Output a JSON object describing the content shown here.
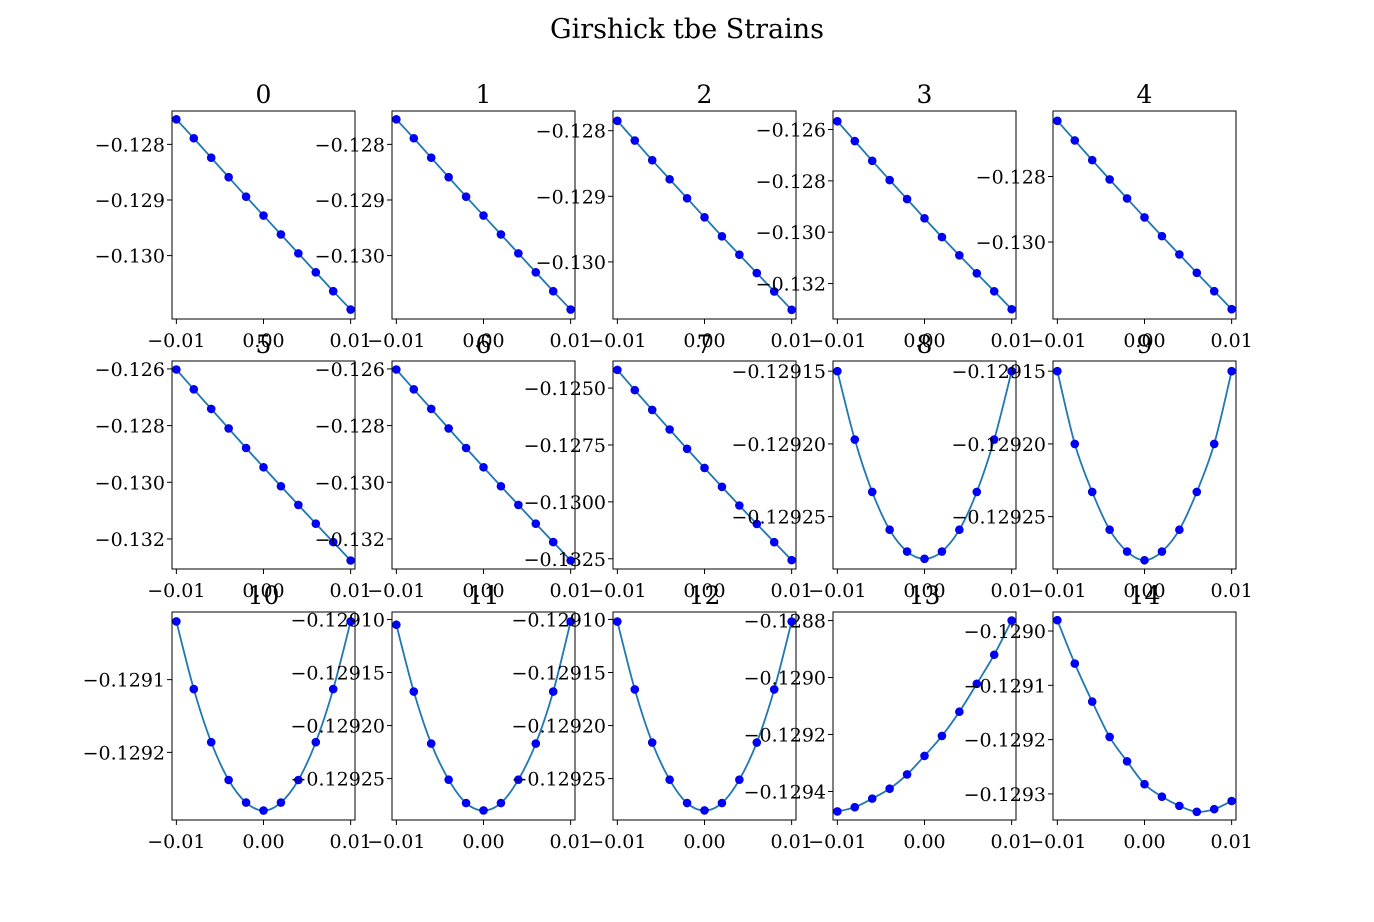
{
  "figure": {
    "title": "Girshick tbe Strains"
  },
  "chart_data": [
    {
      "type": "line",
      "title": "0",
      "x": [
        -0.01,
        -0.008,
        -0.006,
        -0.004,
        -0.002,
        0.0,
        0.002,
        0.004,
        0.006,
        0.008,
        0.01
      ],
      "y": [
        -0.12755,
        -0.12789,
        -0.12824,
        -0.12859,
        -0.12894,
        -0.12928,
        -0.12962,
        -0.12996,
        -0.1303,
        -0.13064,
        -0.13097
      ],
      "xlim": [
        -0.0105,
        0.0105
      ],
      "ylim": [
        -0.13114,
        -0.1274
      ],
      "xticks": [
        -0.01,
        0.0,
        0.01
      ],
      "xtick_labels": [
        "−0.01",
        "0.00",
        "0.01"
      ],
      "yticks": [
        -0.128,
        -0.129,
        -0.13
      ],
      "ytick_labels": [
        "−0.128",
        "−0.129",
        "−0.130"
      ],
      "markers": "blue circles",
      "line_color": "#1f77b4"
    },
    {
      "type": "line",
      "title": "1",
      "x": [
        -0.01,
        -0.008,
        -0.006,
        -0.004,
        -0.002,
        0.0,
        0.002,
        0.004,
        0.006,
        0.008,
        0.01
      ],
      "y": [
        -0.12755,
        -0.12789,
        -0.12824,
        -0.12859,
        -0.12894,
        -0.12928,
        -0.12962,
        -0.12996,
        -0.1303,
        -0.13064,
        -0.13097
      ],
      "xlim": [
        -0.0105,
        0.0105
      ],
      "ylim": [
        -0.13114,
        -0.1274
      ],
      "xticks": [
        -0.01,
        0.0,
        0.01
      ],
      "xtick_labels": [
        "−0.01",
        "0.00",
        "0.01"
      ],
      "yticks": [
        -0.128,
        -0.129,
        -0.13
      ],
      "ytick_labels": [
        "−0.128",
        "−0.129",
        "−0.130"
      ],
      "markers": "blue circles",
      "line_color": "#1f77b4"
    },
    {
      "type": "line",
      "title": "2",
      "x": [
        -0.01,
        -0.008,
        -0.006,
        -0.004,
        -0.002,
        0.0,
        0.002,
        0.004,
        0.006,
        0.008,
        0.01
      ],
      "y": [
        -0.12785,
        -0.12815,
        -0.12845,
        -0.12874,
        -0.12903,
        -0.12932,
        -0.12961,
        -0.12989,
        -0.13017,
        -0.13045,
        -0.13073
      ],
      "xlim": [
        -0.0105,
        0.0105
      ],
      "ylim": [
        -0.13087,
        -0.1277
      ],
      "xticks": [
        -0.01,
        0.0,
        0.01
      ],
      "xtick_labels": [
        "−0.01",
        "0.00",
        "0.01"
      ],
      "yticks": [
        -0.128,
        -0.129,
        -0.13
      ],
      "ytick_labels": [
        "−0.128",
        "−0.129",
        "−0.130"
      ],
      "markers": "blue circles",
      "line_color": "#1f77b4"
    },
    {
      "type": "line",
      "title": "3",
      "x": [
        -0.01,
        -0.008,
        -0.006,
        -0.004,
        -0.002,
        0.0,
        0.002,
        0.004,
        0.006,
        0.008,
        0.01
      ],
      "y": [
        -0.12568,
        -0.12645,
        -0.12722,
        -0.12797,
        -0.12871,
        -0.12946,
        -0.13019,
        -0.1309,
        -0.1316,
        -0.1323,
        -0.133
      ],
      "xlim": [
        -0.0105,
        0.0105
      ],
      "ylim": [
        -0.13338,
        -0.12528
      ],
      "xticks": [
        -0.01,
        0.0,
        0.01
      ],
      "xtick_labels": [
        "−0.01",
        "0.00",
        "0.01"
      ],
      "yticks": [
        -0.126,
        -0.128,
        -0.13,
        -0.132
      ],
      "ytick_labels": [
        "−0.126",
        "−0.128",
        "−0.130",
        "−0.132"
      ],
      "markers": "blue circles",
      "line_color": "#1f77b4"
    },
    {
      "type": "line",
      "title": "4",
      "x": [
        -0.01,
        -0.008,
        -0.006,
        -0.004,
        -0.002,
        0.0,
        0.002,
        0.004,
        0.006,
        0.008,
        0.01
      ],
      "y": [
        -0.1263,
        -0.1269,
        -0.1275,
        -0.12809,
        -0.12867,
        -0.12925,
        -0.12982,
        -0.13038,
        -0.13094,
        -0.1315,
        -0.13205
      ],
      "xlim": [
        -0.0105,
        0.0105
      ],
      "ylim": [
        -0.13235,
        -0.126
      ],
      "xticks": [
        -0.01,
        0.0,
        0.01
      ],
      "xtick_labels": [
        "−0.01",
        "0.00",
        "0.01"
      ],
      "yticks": [
        -0.128,
        -0.13
      ],
      "ytick_labels": [
        "−0.128",
        "−0.130"
      ],
      "markers": "blue circles",
      "line_color": "#1f77b4"
    },
    {
      "type": "line",
      "title": "5",
      "x": [
        -0.01,
        -0.008,
        -0.006,
        -0.004,
        -0.002,
        0.0,
        0.002,
        0.004,
        0.006,
        0.008,
        0.01
      ],
      "y": [
        -0.12602,
        -0.12672,
        -0.12741,
        -0.1281,
        -0.12879,
        -0.12947,
        -0.13014,
        -0.1308,
        -0.13146,
        -0.13211,
        -0.13276
      ],
      "xlim": [
        -0.0105,
        0.0105
      ],
      "ylim": [
        -0.13306,
        -0.12572
      ],
      "xticks": [
        -0.01,
        0.0,
        0.01
      ],
      "xtick_labels": [
        "−0.01",
        "0.00",
        "0.01"
      ],
      "yticks": [
        -0.126,
        -0.128,
        -0.13,
        -0.132
      ],
      "ytick_labels": [
        "−0.126",
        "−0.128",
        "−0.130",
        "−0.132"
      ],
      "markers": "blue circles",
      "line_color": "#1f77b4"
    },
    {
      "type": "line",
      "title": "6",
      "x": [
        -0.01,
        -0.008,
        -0.006,
        -0.004,
        -0.002,
        0.0,
        0.002,
        0.004,
        0.006,
        0.008,
        0.01
      ],
      "y": [
        -0.12602,
        -0.12672,
        -0.12741,
        -0.1281,
        -0.12879,
        -0.12947,
        -0.13014,
        -0.1308,
        -0.13146,
        -0.13211,
        -0.13276
      ],
      "xlim": [
        -0.0105,
        0.0105
      ],
      "ylim": [
        -0.13306,
        -0.12572
      ],
      "xticks": [
        -0.01,
        0.0,
        0.01
      ],
      "xtick_labels": [
        "−0.01",
        "0.00",
        "0.01"
      ],
      "yticks": [
        -0.126,
        -0.128,
        -0.13,
        -0.132
      ],
      "ytick_labels": [
        "−0.126",
        "−0.128",
        "−0.130",
        "−0.132"
      ],
      "markers": "blue circles",
      "line_color": "#1f77b4"
    },
    {
      "type": "line",
      "title": "7",
      "x": [
        -0.01,
        -0.008,
        -0.006,
        -0.004,
        -0.002,
        0.0,
        0.002,
        0.004,
        0.006,
        0.008,
        0.01
      ],
      "y": [
        -0.1242,
        -0.12509,
        -0.12596,
        -0.12682,
        -0.12767,
        -0.12851,
        -0.12934,
        -0.13016,
        -0.13097,
        -0.13177,
        -0.13256
      ],
      "xlim": [
        -0.0105,
        0.0105
      ],
      "ylim": [
        -0.13295,
        -0.12381
      ],
      "xticks": [
        -0.01,
        0.0,
        0.01
      ],
      "xtick_labels": [
        "−0.01",
        "0.00",
        "0.01"
      ],
      "yticks": [
        -0.125,
        -0.1275,
        -0.13,
        -0.1325
      ],
      "ytick_labels": [
        "−0.1250",
        "−0.1275",
        "−0.1300",
        "−0.1325"
      ],
      "markers": "blue circles",
      "line_color": "#1f77b4"
    },
    {
      "type": "line",
      "title": "8",
      "x": [
        -0.01,
        -0.008,
        -0.006,
        -0.004,
        -0.002,
        0.0,
        0.002,
        0.004,
        0.006,
        0.008,
        0.01
      ],
      "y": [
        -0.12915,
        -0.129197,
        -0.129233,
        -0.129259,
        -0.129274,
        -0.129279,
        -0.129274,
        -0.129259,
        -0.129233,
        -0.129197,
        -0.12915
      ],
      "xlim": [
        -0.0105,
        0.0105
      ],
      "ylim": [
        -0.129286,
        -0.129143
      ],
      "xticks": [
        -0.01,
        0.0,
        0.01
      ],
      "xtick_labels": [
        "−0.01",
        "0.00",
        "0.01"
      ],
      "yticks": [
        -0.12915,
        -0.1292,
        -0.12925
      ],
      "ytick_labels": [
        "−0.12915",
        "−0.12920",
        "−0.12925"
      ],
      "markers": "blue circles",
      "line_color": "#1f77b4"
    },
    {
      "type": "line",
      "title": "9",
      "x": [
        -0.01,
        -0.008,
        -0.006,
        -0.004,
        -0.002,
        0.0,
        0.002,
        0.004,
        0.006,
        0.008,
        0.01
      ],
      "y": [
        -0.12915,
        -0.1292,
        -0.129233,
        -0.129259,
        -0.129274,
        -0.12928,
        -0.129274,
        -0.129259,
        -0.129233,
        -0.1292,
        -0.12915
      ],
      "xlim": [
        -0.0105,
        0.0105
      ],
      "ylim": [
        -0.129286,
        -0.129143
      ],
      "xticks": [
        -0.01,
        0.0,
        0.01
      ],
      "xtick_labels": [
        "−0.01",
        "0.00",
        "0.01"
      ],
      "yticks": [
        -0.12915,
        -0.1292,
        -0.12925
      ],
      "ytick_labels": [
        "−0.12915",
        "−0.12920",
        "−0.12925"
      ],
      "markers": "blue circles",
      "line_color": "#1f77b4"
    },
    {
      "type": "line",
      "title": "10",
      "x": [
        -0.01,
        -0.008,
        -0.006,
        -0.004,
        -0.002,
        0.0,
        0.002,
        0.004,
        0.006,
        0.008,
        0.01
      ],
      "y": [
        -0.12902,
        -0.129113,
        -0.129186,
        -0.129238,
        -0.129269,
        -0.12928,
        -0.129269,
        -0.129238,
        -0.129186,
        -0.129113,
        -0.12902
      ],
      "xlim": [
        -0.0105,
        0.0105
      ],
      "ylim": [
        -0.129293,
        -0.129007
      ],
      "xticks": [
        -0.01,
        0.0,
        0.01
      ],
      "xtick_labels": [
        "−0.01",
        "0.00",
        "0.01"
      ],
      "yticks": [
        -0.1291,
        -0.1292
      ],
      "ytick_labels": [
        "−0.1291",
        "−0.1292"
      ],
      "markers": "blue circles",
      "line_color": "#1f77b4"
    },
    {
      "type": "line",
      "title": "11",
      "x": [
        -0.01,
        -0.008,
        -0.006,
        -0.004,
        -0.002,
        0.0,
        0.002,
        0.004,
        0.006,
        0.008,
        0.01
      ],
      "y": [
        -0.129105,
        -0.129168,
        -0.129217,
        -0.129251,
        -0.129273,
        -0.12928,
        -0.129273,
        -0.129251,
        -0.129217,
        -0.129168,
        -0.129102
      ],
      "xlim": [
        -0.0105,
        0.0105
      ],
      "ylim": [
        -0.129289,
        -0.129093
      ],
      "xticks": [
        -0.01,
        0.0,
        0.01
      ],
      "xtick_labels": [
        "−0.01",
        "0.00",
        "0.01"
      ],
      "yticks": [
        -0.1291,
        -0.12915,
        -0.1292,
        -0.12925
      ],
      "ytick_labels": [
        "−0.12910",
        "−0.12915",
        "−0.12920",
        "−0.12925"
      ],
      "markers": "blue circles",
      "line_color": "#1f77b4"
    },
    {
      "type": "line",
      "title": "12",
      "x": [
        -0.01,
        -0.008,
        -0.006,
        -0.004,
        -0.002,
        0.0,
        0.002,
        0.004,
        0.006,
        0.008,
        0.01
      ],
      "y": [
        -0.129102,
        -0.129166,
        -0.129216,
        -0.129251,
        -0.129273,
        -0.12928,
        -0.129273,
        -0.129251,
        -0.129216,
        -0.129166,
        -0.129102
      ],
      "xlim": [
        -0.0105,
        0.0105
      ],
      "ylim": [
        -0.129289,
        -0.129093
      ],
      "xticks": [
        -0.01,
        0.0,
        0.01
      ],
      "xtick_labels": [
        "−0.01",
        "0.00",
        "0.01"
      ],
      "yticks": [
        -0.1291,
        -0.12915,
        -0.1292,
        -0.12925
      ],
      "ytick_labels": [
        "−0.12910",
        "−0.12915",
        "−0.12920",
        "−0.12925"
      ],
      "markers": "blue circles",
      "line_color": "#1f77b4"
    },
    {
      "type": "line",
      "title": "13",
      "x": [
        -0.01,
        -0.008,
        -0.006,
        -0.004,
        -0.002,
        0.0,
        0.002,
        0.004,
        0.006,
        0.008,
        0.01
      ],
      "y": [
        -0.12947,
        -0.129455,
        -0.129425,
        -0.12939,
        -0.12934,
        -0.129275,
        -0.129205,
        -0.12912,
        -0.129022,
        -0.12892,
        -0.1288
      ],
      "xlim": [
        -0.0105,
        0.0105
      ],
      "ylim": [
        -0.1295,
        -0.12877
      ],
      "xticks": [
        -0.01,
        0.0,
        0.01
      ],
      "xtick_labels": [
        "−0.01",
        "0.00",
        "0.01"
      ],
      "yticks": [
        -0.1288,
        -0.129,
        -0.1292,
        -0.1294
      ],
      "ytick_labels": [
        "−0.1288",
        "−0.1290",
        "−0.1292",
        "−0.1294"
      ],
      "markers": "blue circles",
      "line_color": "#1f77b4"
    },
    {
      "type": "line",
      "title": "14",
      "x": [
        -0.01,
        -0.008,
        -0.006,
        -0.004,
        -0.002,
        0.0,
        0.002,
        0.004,
        0.006,
        0.008,
        0.01
      ],
      "y": [
        -0.12898,
        -0.12906,
        -0.12913,
        -0.129195,
        -0.12924,
        -0.129282,
        -0.129305,
        -0.129322,
        -0.129333,
        -0.129328,
        -0.129313
      ],
      "xlim": [
        -0.0105,
        0.0105
      ],
      "ylim": [
        -0.129348,
        -0.128965
      ],
      "xticks": [
        -0.01,
        0.0,
        0.01
      ],
      "xtick_labels": [
        "−0.01",
        "0.00",
        "0.01"
      ],
      "yticks": [
        -0.129,
        -0.1291,
        -0.1292,
        -0.1293
      ],
      "ytick_labels": [
        "−0.1290",
        "−0.1291",
        "−0.1292",
        "−0.1293"
      ],
      "markers": "blue circles",
      "line_color": "#1f77b4"
    }
  ]
}
